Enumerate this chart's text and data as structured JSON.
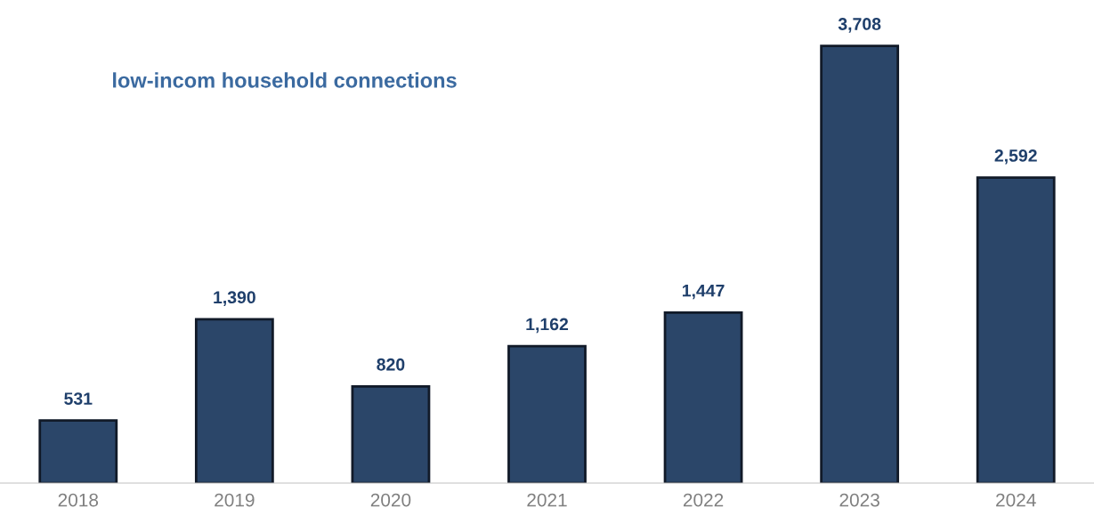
{
  "chart_data": {
    "type": "bar",
    "title": "low-incom household connections",
    "categories": [
      "2018",
      "2019",
      "2020",
      "2021",
      "2022",
      "2023",
      "2024"
    ],
    "values": [
      531,
      1390,
      820,
      1162,
      1447,
      3708,
      2592
    ],
    "value_labels": [
      "531",
      "1,390",
      "820",
      "1,162",
      "1,447",
      "3,708",
      "2,592"
    ],
    "color": "#2b4669",
    "grid": false,
    "legend": false,
    "tick_labels": "x"
  }
}
